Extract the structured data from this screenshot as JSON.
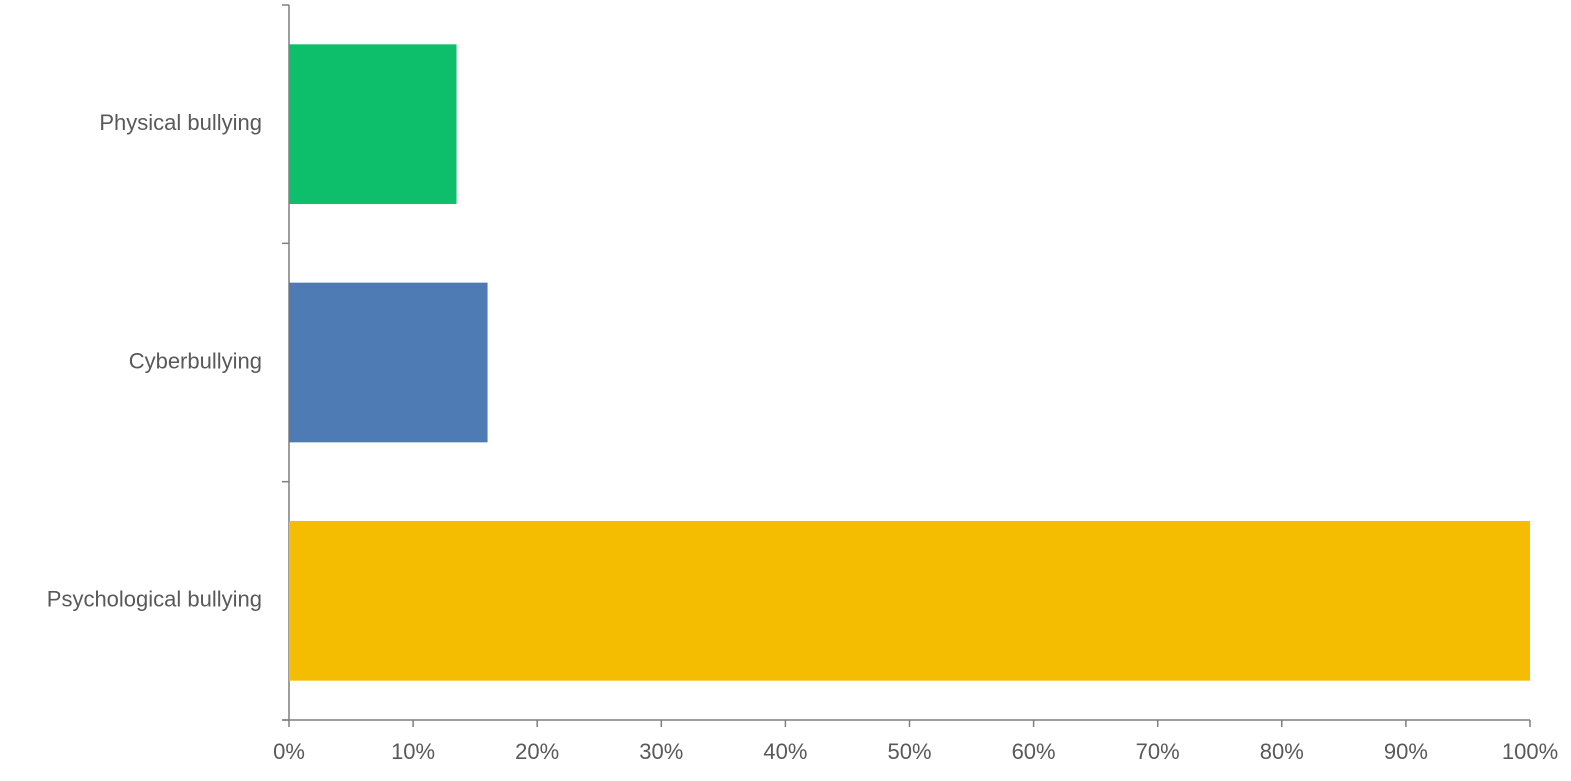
{
  "chart_data": {
    "type": "barh",
    "categories": [
      "Physical bullying",
      "Cyberbullying",
      "Psychological bullying"
    ],
    "values": [
      13.5,
      16,
      100
    ],
    "colors": [
      "#0dbf6b",
      "#4f7bb5",
      "#f5bd02"
    ],
    "xlim": [
      0,
      100
    ],
    "xticks": [
      {
        "value": 0,
        "label": "0%"
      },
      {
        "value": 10,
        "label": "10%"
      },
      {
        "value": 20,
        "label": "20%"
      },
      {
        "value": 30,
        "label": "30%"
      },
      {
        "value": 40,
        "label": "40%"
      },
      {
        "value": 50,
        "label": "50%"
      },
      {
        "value": 60,
        "label": "60%"
      },
      {
        "value": 70,
        "label": "70%"
      },
      {
        "value": 80,
        "label": "80%"
      },
      {
        "value": 90,
        "label": "90%"
      },
      {
        "value": 100,
        "label": "100%"
      }
    ],
    "grid": false
  }
}
